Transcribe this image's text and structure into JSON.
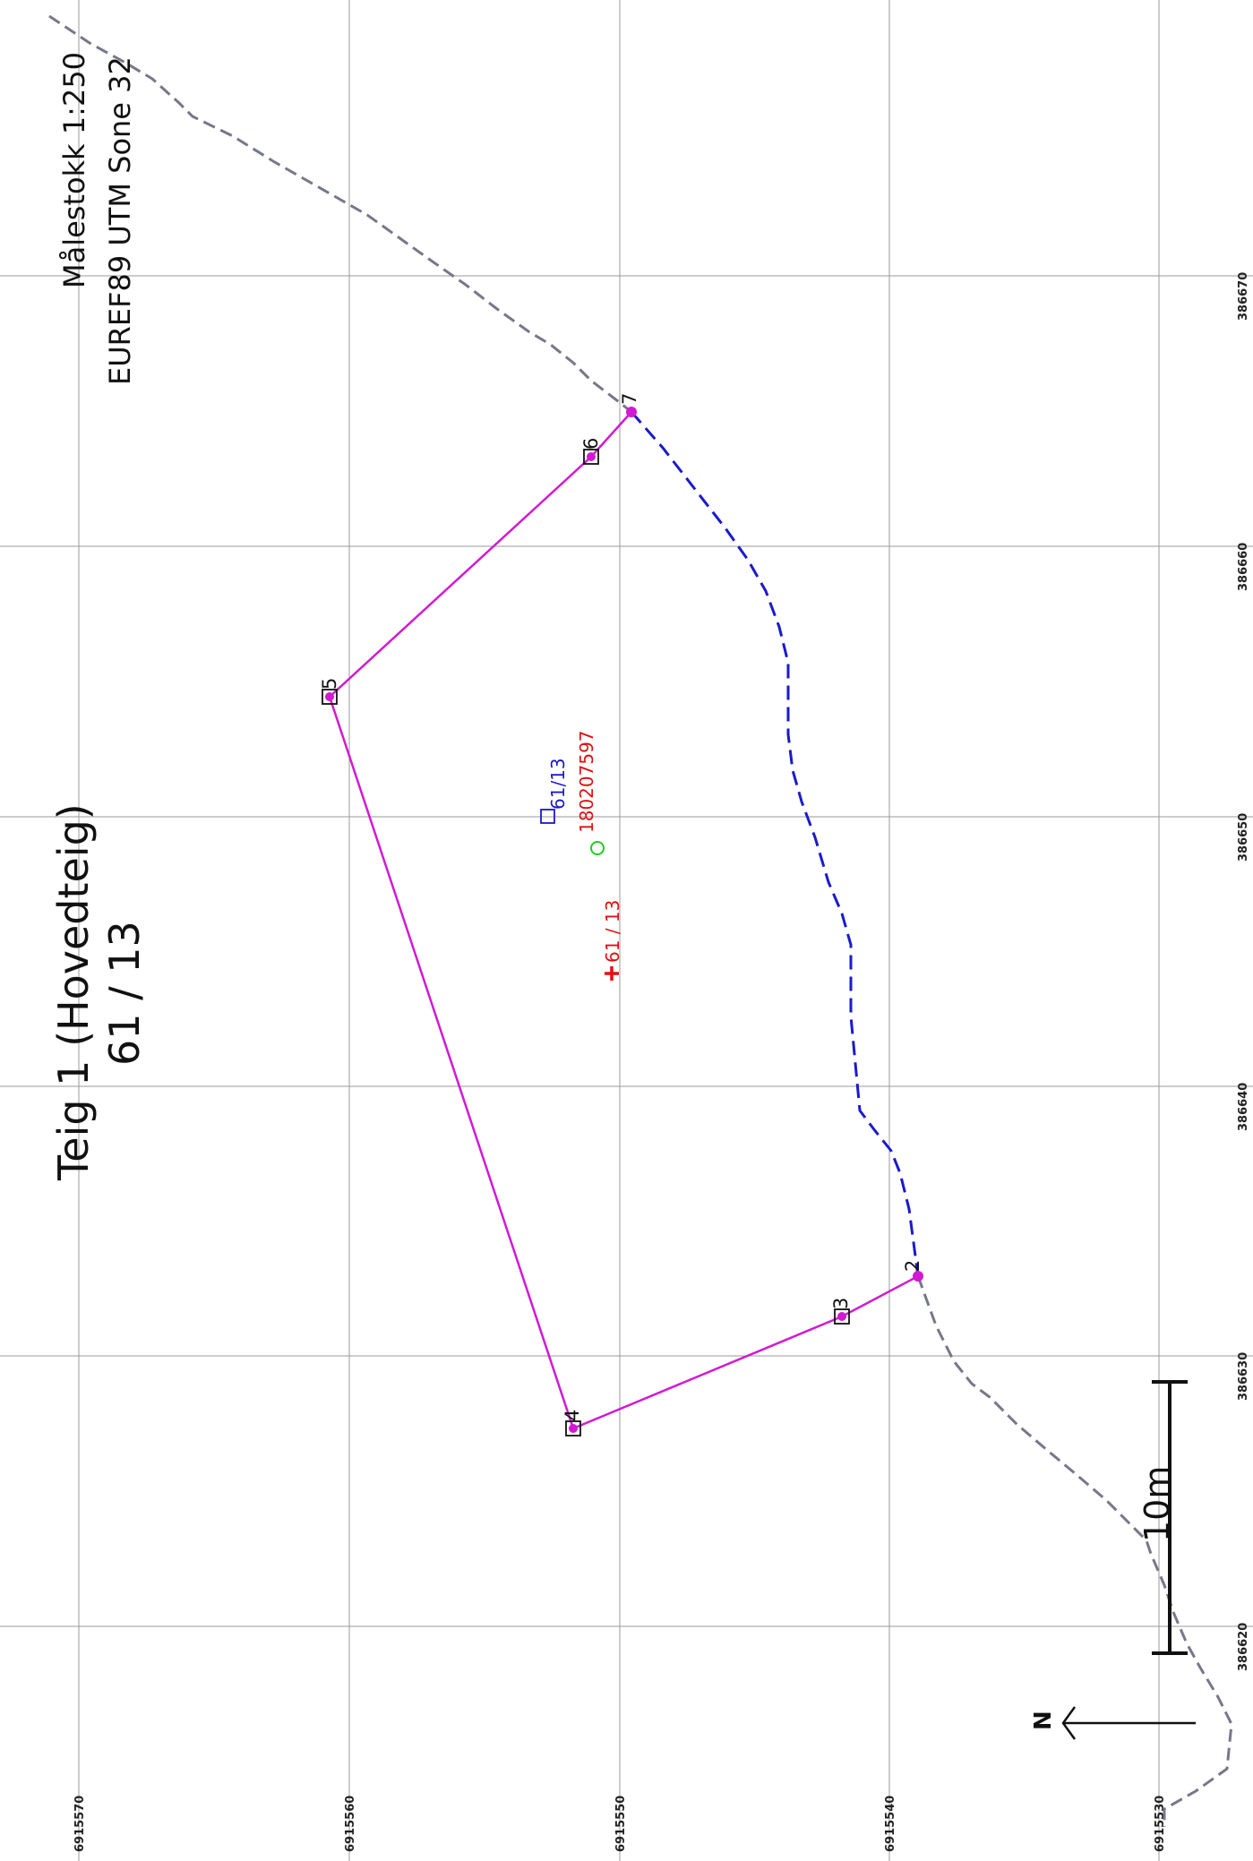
{
  "map": {
    "title": "Teig 1 (Hovedteig)",
    "subtitle": "61 / 13",
    "scale_text": "Målestokk 1:250",
    "crs_text": "EUREF89 UTM Sone 32",
    "scale_bar_label": "10m",
    "north_label": "N"
  },
  "grid": {
    "easting_labels": [
      "386620",
      "386630",
      "386640",
      "386650",
      "386660",
      "386670"
    ],
    "northing_labels": [
      "6915570",
      "6915560",
      "6915550",
      "6915540",
      "6915530"
    ]
  },
  "boundary_points": [
    {
      "label": "2",
      "easting": 386633.0,
      "northing": 6915539.0
    },
    {
      "label": "3",
      "easting": 386631.5,
      "northing": 6915541.8
    },
    {
      "label": "4",
      "easting": 386629.0,
      "northing": 6915551.8
    },
    {
      "label": "5",
      "easting": 386656.0,
      "northing": 6915560.7
    },
    {
      "label": "6",
      "easting": 386663.4,
      "northing": 6915551.2
    },
    {
      "label": "7",
      "easting": 386665.0,
      "northing": 6915549.7
    }
  ],
  "parcel_labels": {
    "blue": "61/13",
    "red_id": "180207597",
    "red_number": "61 / 13"
  },
  "colors": {
    "boundary": "#d21ad2",
    "blue_line": "#1a1acc",
    "gray_line": "#77778a",
    "red": "#e01010",
    "green": "#22cc22",
    "grid": "#9a9a9a"
  }
}
